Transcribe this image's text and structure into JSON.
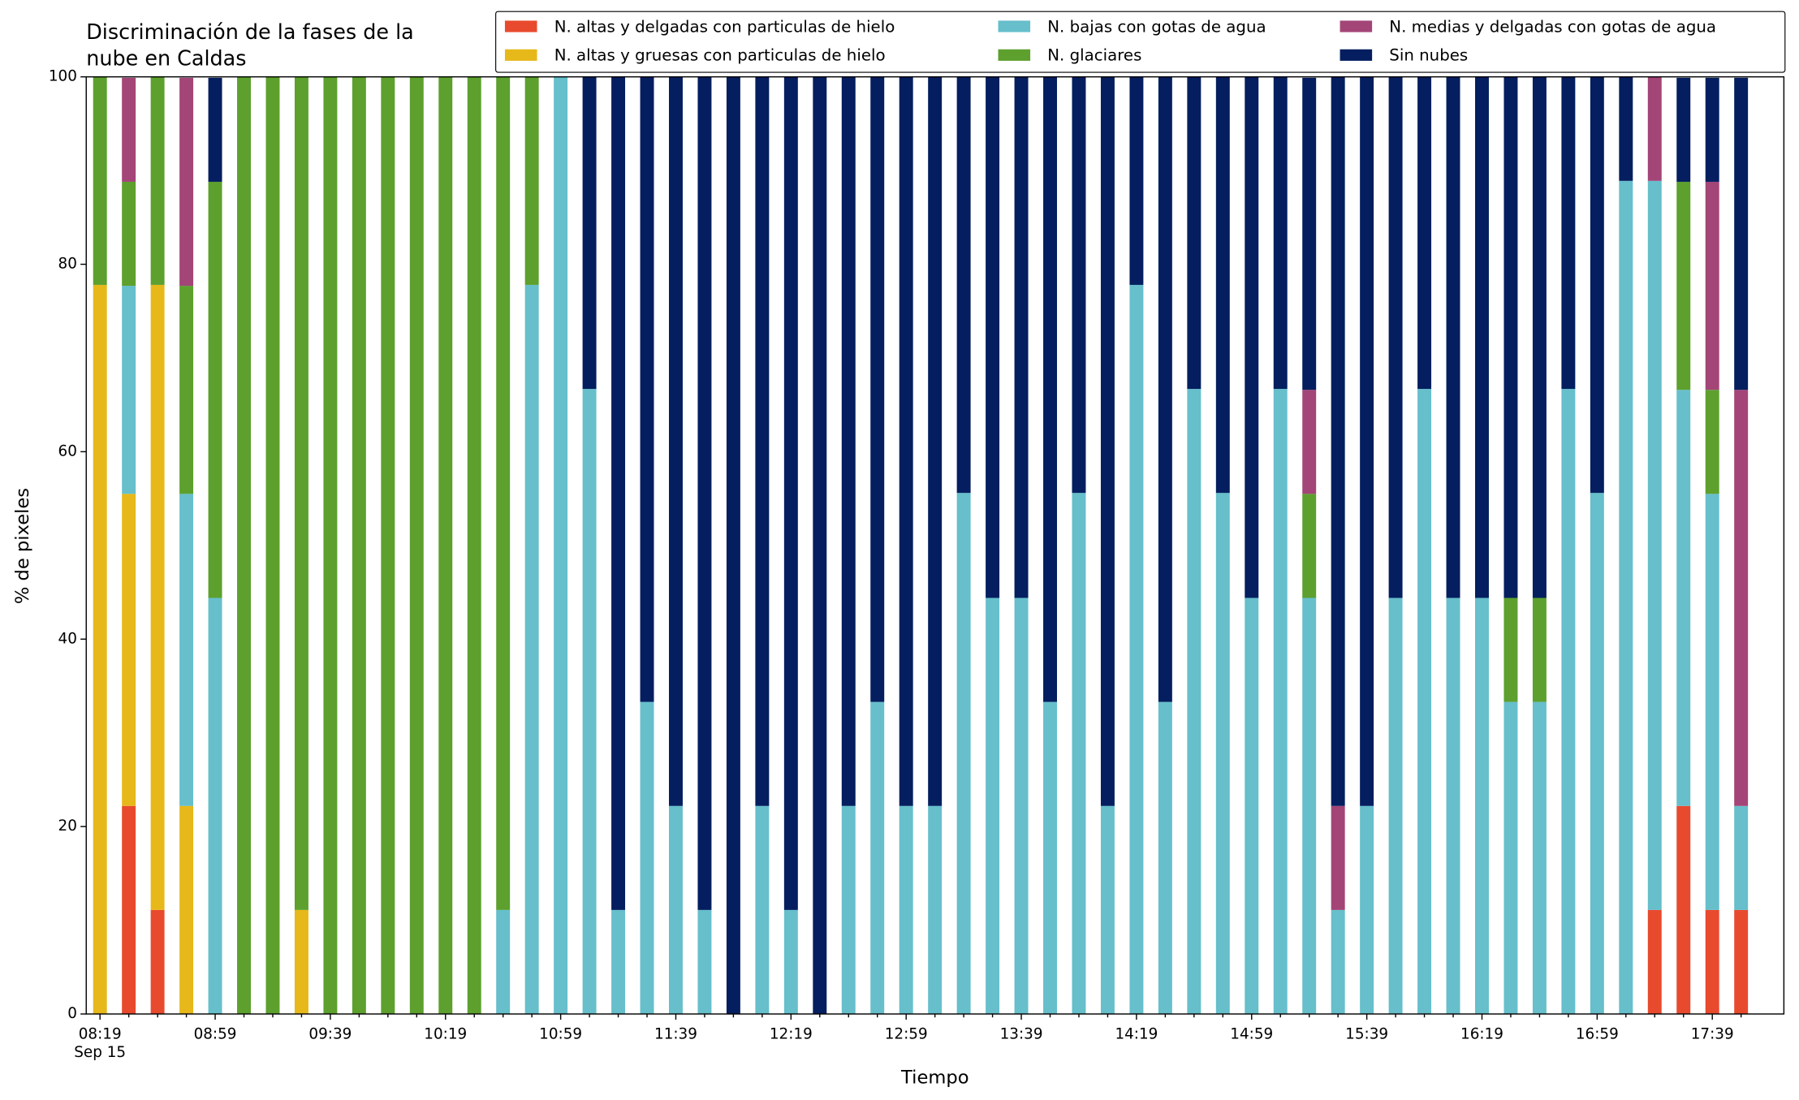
{
  "chart_data": {
    "type": "stacked_bar",
    "title": [
      "Discriminación de la fases de la",
      "nube en Caldas"
    ],
    "x_label": "Tiempo",
    "y_label": "% de pixeles",
    "x_date_label": "Sep 15",
    "categories": [
      "08:19",
      null,
      null,
      null,
      "08:59",
      null,
      null,
      null,
      "09:39",
      null,
      null,
      null,
      "10:19",
      null,
      null,
      null,
      "10:59",
      null,
      null,
      null,
      "11:39",
      null,
      null,
      null,
      "12:19",
      null,
      null,
      null,
      "12:59",
      null,
      null,
      null,
      "13:39",
      null,
      null,
      null,
      "14:19",
      null,
      null,
      null,
      "14:59",
      null,
      null,
      null,
      "15:39",
      null,
      null,
      null,
      "16:19",
      null,
      null,
      null,
      "16:59",
      null,
      null,
      null,
      "17:39",
      null
    ],
    "series": [
      {
        "name": "N. altas y delgadas con particulas de hielo",
        "color": "#e84a2e",
        "values": [
          0,
          22.2,
          11.1,
          0,
          0,
          0,
          0,
          0,
          0,
          0,
          0,
          0,
          0,
          0,
          0,
          0,
          0,
          0,
          0,
          0,
          0,
          0,
          0,
          0,
          0,
          0,
          0,
          0,
          0,
          0,
          0,
          0,
          0,
          0,
          0,
          0,
          0,
          0,
          0,
          0,
          0,
          0,
          0,
          0,
          0,
          0,
          0,
          0,
          0,
          0,
          0,
          0,
          0,
          0,
          11.1,
          22.2,
          11.1,
          11.1
        ]
      },
      {
        "name": "N. altas y gruesas con particulas de hielo",
        "color": "#e6b81a",
        "values": [
          77.8,
          33.3,
          66.7,
          22.2,
          0,
          0,
          0,
          11.1,
          0,
          0,
          0,
          0,
          0,
          0,
          0,
          0,
          0,
          0,
          0,
          0,
          0,
          0,
          0,
          0,
          0,
          0,
          0,
          0,
          0,
          0,
          0,
          0,
          0,
          0,
          0,
          0,
          0,
          0,
          0,
          0,
          0,
          0,
          0,
          0,
          0,
          0,
          0,
          0,
          0,
          0,
          0,
          0,
          0,
          0,
          0,
          0,
          0,
          0
        ]
      },
      {
        "name": "N. bajas con gotas de agua",
        "color": "#66bfcb",
        "values": [
          0,
          22.2,
          0,
          33.3,
          44.4,
          0,
          0,
          0,
          0,
          0,
          0,
          0,
          0,
          0,
          11.1,
          77.8,
          100,
          66.7,
          11.1,
          33.3,
          22.2,
          11.1,
          0,
          22.2,
          11.1,
          0,
          22.2,
          33.3,
          22.2,
          22.2,
          55.6,
          44.4,
          44.4,
          33.3,
          55.6,
          22.2,
          77.8,
          33.3,
          66.7,
          55.6,
          44.4,
          66.7,
          44.4,
          11.1,
          22.2,
          44.4,
          66.7,
          44.4,
          44.4,
          33.3,
          33.3,
          66.7,
          55.6,
          88.9,
          77.8,
          44.4,
          44.4,
          11.1
        ]
      },
      {
        "name": "N. glaciares",
        "color": "#5da02e",
        "values": [
          22.2,
          11.1,
          22.2,
          22.2,
          44.4,
          100,
          100,
          88.9,
          100,
          100,
          100,
          100,
          100,
          100,
          88.9,
          22.2,
          0,
          0,
          0,
          0,
          0,
          0,
          0,
          0,
          0,
          0,
          0,
          0,
          0,
          0,
          0,
          0,
          0,
          0,
          0,
          0,
          0,
          0,
          0,
          0,
          0,
          0,
          11.1,
          0,
          0,
          0,
          0,
          0,
          0,
          11.1,
          11.1,
          0,
          0,
          0,
          0,
          22.2,
          11.1,
          0
        ]
      },
      {
        "name": "N. medias y delgadas con gotas de agua",
        "color": "#a34577",
        "values": [
          0,
          11.1,
          0,
          22.2,
          0,
          0,
          0,
          0,
          0,
          0,
          0,
          0,
          0,
          0,
          0,
          0,
          0,
          0,
          0,
          0,
          0,
          0,
          0,
          0,
          0,
          0,
          0,
          0,
          0,
          0,
          0,
          0,
          0,
          0,
          0,
          0,
          0,
          0,
          0,
          0,
          0,
          0,
          11.1,
          11.1,
          0,
          0,
          0,
          0,
          0,
          0,
          0,
          0,
          0,
          0,
          11.1,
          0,
          22.2,
          44.4
        ]
      },
      {
        "name": "Sin nubes",
        "color": "#041e5f",
        "values": [
          0,
          0,
          0,
          0,
          11.1,
          0,
          0,
          0,
          0,
          0,
          0,
          0,
          0,
          0,
          0,
          0,
          0,
          33.3,
          88.9,
          66.7,
          77.8,
          88.9,
          100,
          77.8,
          88.9,
          100,
          77.8,
          66.7,
          77.8,
          77.8,
          44.4,
          55.6,
          55.6,
          66.7,
          44.4,
          77.8,
          22.2,
          66.7,
          33.3,
          44.4,
          55.6,
          33.3,
          33.3,
          77.8,
          77.8,
          55.6,
          33.3,
          55.6,
          55.6,
          55.6,
          55.6,
          33.3,
          44.4,
          11.1,
          0,
          11.1,
          11.1,
          33.3
        ]
      }
    ],
    "ylim": [
      0,
      100
    ],
    "yticks": [
      0,
      20,
      40,
      60,
      80,
      100
    ],
    "legend": "upper right"
  }
}
